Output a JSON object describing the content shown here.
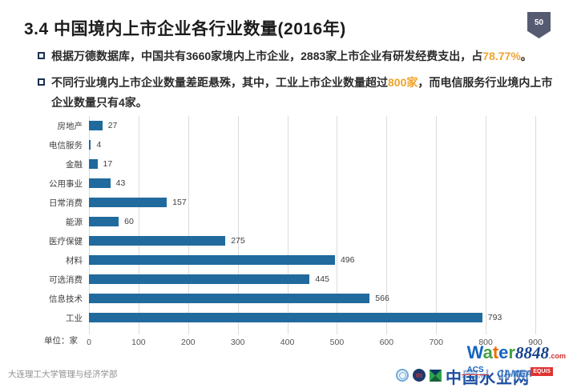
{
  "page": {
    "badge": "50",
    "title": "3.4  中国境内上市企业各行业数量(2016年)",
    "footer": "大连理工大学管理与经济学部"
  },
  "bullets": [
    {
      "pre": "根据万德数据库，中国共有3660家境内上市企业，2883家上市企业有研发经费支出，占",
      "highlight": "78.77%",
      "post": "。"
    },
    {
      "pre": "不同行业境内上市企业数量差距悬殊，其中，工业上市企业数量超过",
      "highlight": "800家",
      "post": "，而电信服务行业境内上市企业数量只有4家。"
    }
  ],
  "chart_data": {
    "type": "bar",
    "orientation": "horizontal",
    "title": "",
    "categories": [
      "房地产",
      "电信服务",
      "金融",
      "公用事业",
      "日常消费",
      "能源",
      "医疗保健",
      "材料",
      "可选消费",
      "信息技术",
      "工业"
    ],
    "values": [
      27,
      4,
      17,
      43,
      157,
      60,
      275,
      496,
      445,
      566,
      793
    ],
    "xlim": [
      0,
      900
    ],
    "x_ticks": [
      0,
      100,
      200,
      300,
      400,
      500,
      600,
      700,
      800,
      900
    ],
    "unit_label": "单位：家",
    "grid": true,
    "legend": "none",
    "bar_color": "#206a9e"
  },
  "colors": {
    "bar": "#206a9e",
    "highlight": "#efa32c",
    "badge": "#575b72",
    "grid": "#dcdcdc"
  },
  "watermark": {
    "brand_letters": [
      {
        "ch": "W",
        "color": "#1565c0"
      },
      {
        "ch": "a",
        "color": "#43a047"
      },
      {
        "ch": "t",
        "color": "#ef6c00"
      },
      {
        "ch": "e",
        "color": "#1565c0"
      },
      {
        "ch": "r",
        "color": "#43a047"
      }
    ],
    "brand_number": "8848",
    "brand_tld": ".com",
    "site_name": "中国水业网",
    "accreditation_acs": "ACS",
    "accreditation_accredited": "ACCREDITED",
    "accreditation_camea": "CAMEA",
    "accreditation_equis": "EQUIS"
  }
}
